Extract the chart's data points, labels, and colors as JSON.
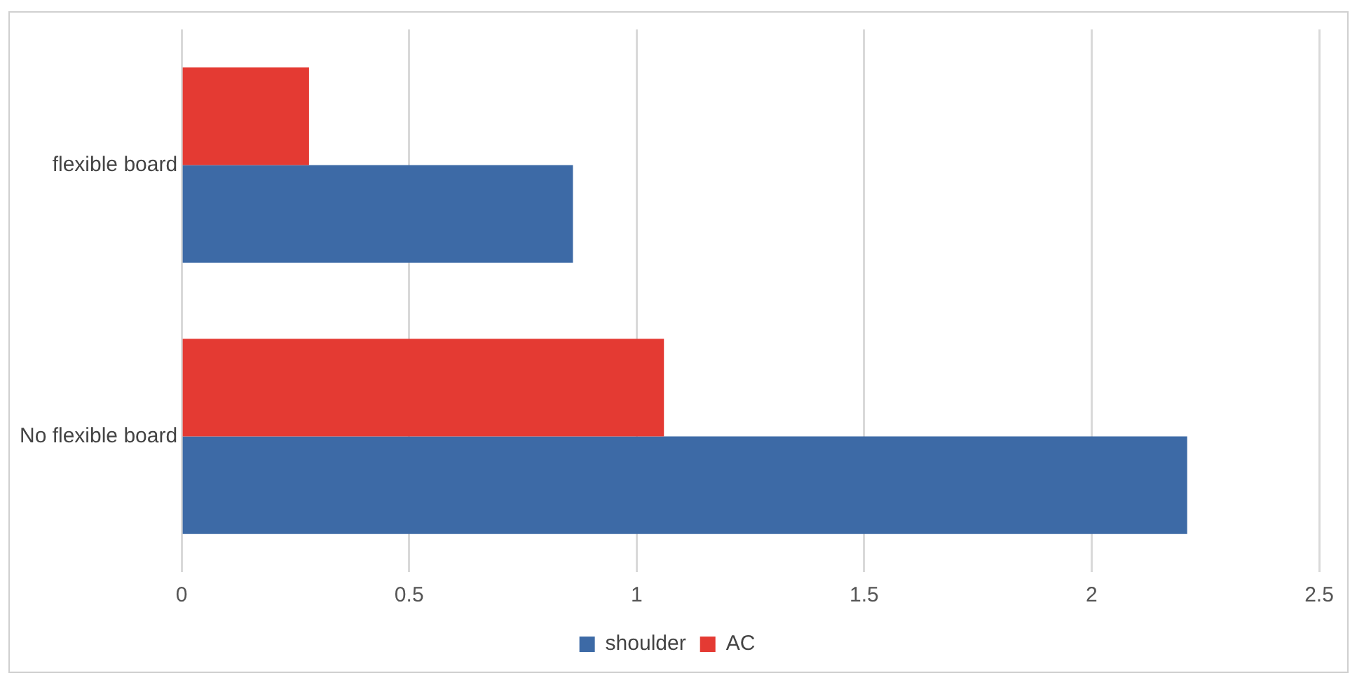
{
  "chart_data": {
    "type": "bar",
    "orientation": "horizontal",
    "categories": [
      "flexible board",
      "No flexible board"
    ],
    "series": [
      {
        "name": "shoulder",
        "color": "#3d6aa6",
        "values": [
          0.86,
          2.21
        ]
      },
      {
        "name": "AC",
        "color": "#e43a33",
        "values": [
          0.28,
          1.06
        ]
      }
    ],
    "xlim": [
      0,
      2.5
    ],
    "xticks": [
      0,
      0.5,
      1,
      1.5,
      2,
      2.5
    ],
    "grid": "x",
    "legend": "bottom"
  }
}
